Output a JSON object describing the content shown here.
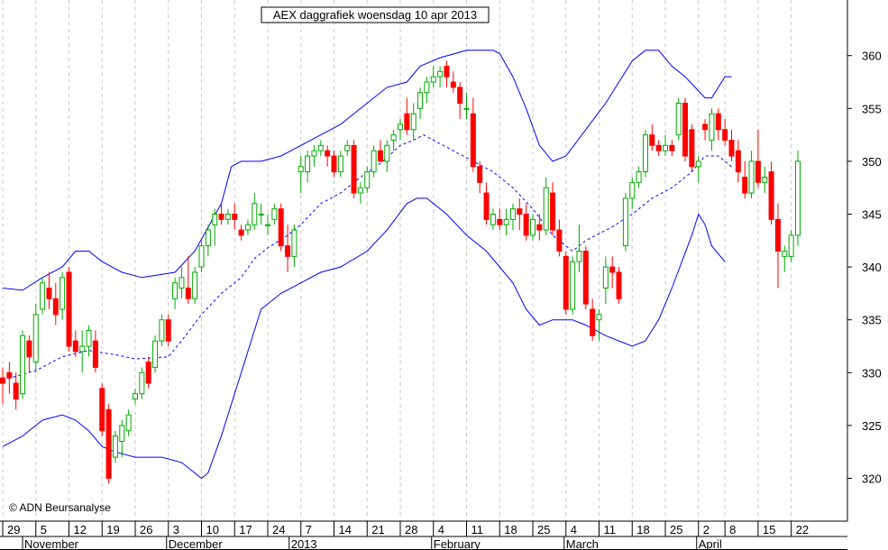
{
  "chart_data": {
    "type": "candlestick",
    "title": "AEX daggrafiek woensdag 10 apr 2013",
    "copyright": "© ADN Beursanalyse",
    "ylim": [
      315.5,
      365.5
    ],
    "y_ticks": [
      320,
      325,
      330,
      335,
      340,
      345,
      350,
      355,
      360
    ],
    "x_ticks": [
      {
        "label": "29",
        "day": 0
      },
      {
        "label": "5",
        "day": 5
      },
      {
        "label": "12",
        "day": 10
      },
      {
        "label": "19",
        "day": 15
      },
      {
        "label": "26",
        "day": 20
      },
      {
        "label": "3",
        "day": 25
      },
      {
        "label": "10",
        "day": 30
      },
      {
        "label": "17",
        "day": 35
      },
      {
        "label": "24",
        "day": 40
      },
      {
        "label": "7",
        "day": 45
      },
      {
        "label": "14",
        "day": 50
      },
      {
        "label": "21",
        "day": 55
      },
      {
        "label": "28",
        "day": 60
      },
      {
        "label": "4",
        "day": 65
      },
      {
        "label": "11",
        "day": 70
      },
      {
        "label": "18",
        "day": 75
      },
      {
        "label": "25",
        "day": 80
      },
      {
        "label": "4",
        "day": 85
      },
      {
        "label": "11",
        "day": 90
      },
      {
        "label": "18",
        "day": 95
      },
      {
        "label": "25",
        "day": 100
      },
      {
        "label": "2",
        "day": 105
      },
      {
        "label": "8",
        "day": 109
      },
      {
        "label": "15",
        "day": 114
      },
      {
        "label": "22",
        "day": 119
      }
    ],
    "months": [
      {
        "label": "November",
        "day": 3
      },
      {
        "label": "December",
        "day": 25
      },
      {
        "label": "2013",
        "day": 43.5
      },
      {
        "label": "February",
        "day": 65
      },
      {
        "label": "March",
        "day": 85
      },
      {
        "label": "April",
        "day": 105
      }
    ],
    "candles": [
      [
        329.5,
        330.5,
        327,
        329
      ],
      [
        330,
        331,
        328,
        329.5
      ],
      [
        329,
        330,
        326.5,
        327.5
      ],
      [
        328,
        334,
        327.5,
        333.5
      ],
      [
        333,
        333.5,
        330,
        331.5
      ],
      [
        331,
        336.5,
        330,
        335.5
      ],
      [
        336,
        339,
        335.5,
        338.5
      ],
      [
        338,
        339.5,
        336,
        337
      ],
      [
        337,
        338.5,
        334.5,
        335.5
      ],
      [
        336,
        339.5,
        335,
        339
      ],
      [
        339.5,
        340,
        332,
        332.5
      ],
      [
        333,
        334,
        331.5,
        332
      ],
      [
        332,
        334,
        330,
        332.5
      ],
      [
        332.5,
        334.5,
        331.5,
        334
      ],
      [
        333,
        334,
        330,
        330.5
      ],
      [
        328.5,
        329,
        324,
        324.5
      ],
      [
        326.5,
        327,
        319.5,
        320
      ],
      [
        322,
        324.5,
        321.5,
        324
      ],
      [
        323.5,
        325.5,
        322,
        325
      ],
      [
        324.5,
        326.5,
        324,
        326
      ],
      [
        327.5,
        328.5,
        327,
        328
      ],
      [
        328,
        330.5,
        327.5,
        330
      ],
      [
        331,
        331.5,
        328.5,
        329
      ],
      [
        330.5,
        333.5,
        330,
        333
      ],
      [
        333,
        335.5,
        332.5,
        335
      ],
      [
        335,
        335.5,
        332.5,
        333
      ],
      [
        337,
        339,
        336,
        338.5
      ],
      [
        338,
        340,
        337,
        339
      ],
      [
        338,
        341,
        336.5,
        337
      ],
      [
        337,
        340,
        336.5,
        339.5
      ],
      [
        340,
        342.5,
        339.5,
        342
      ],
      [
        342,
        344,
        341,
        343.5
      ],
      [
        344,
        345.5,
        342,
        345
      ],
      [
        345,
        346,
        344,
        344.5
      ],
      [
        344.5,
        345.5,
        344,
        345
      ],
      [
        345,
        346,
        343.5,
        344.5
      ],
      [
        343.5,
        344,
        342.5,
        343
      ],
      [
        343.5,
        344.5,
        343,
        344
      ],
      [
        344,
        347,
        343.5,
        346
      ],
      [
        345,
        346,
        344,
        345
      ],
      [
        344,
        345,
        343,
        344
      ],
      [
        344.5,
        346,
        344,
        345.5
      ],
      [
        345.5,
        346,
        341.5,
        342
      ],
      [
        342,
        344,
        339.5,
        341
      ],
      [
        341,
        344,
        340,
        343.5
      ],
      [
        349,
        350.5,
        347,
        349.5
      ],
      [
        349,
        351,
        348,
        350.5
      ],
      [
        350.5,
        351.5,
        349.5,
        351
      ],
      [
        351,
        352,
        350.5,
        351.5
      ],
      [
        351,
        351.5,
        349.5,
        350.5
      ],
      [
        350.5,
        351,
        348.5,
        349
      ],
      [
        349,
        351,
        348.5,
        350.5
      ],
      [
        351,
        352,
        350.5,
        351.5
      ],
      [
        351.5,
        352,
        346.5,
        347
      ],
      [
        347,
        348,
        346,
        347.5
      ],
      [
        347.5,
        349.5,
        347,
        349
      ],
      [
        349,
        351.5,
        348.5,
        351
      ],
      [
        351,
        352,
        350,
        350
      ],
      [
        350,
        352,
        349,
        351.5
      ],
      [
        352,
        353,
        351,
        352.5
      ],
      [
        353,
        354,
        352,
        353.5
      ],
      [
        354.5,
        356,
        352.5,
        353
      ],
      [
        353,
        355.5,
        352,
        354.5
      ],
      [
        355,
        357,
        354,
        356.5
      ],
      [
        356.5,
        358,
        355.5,
        357.5
      ],
      [
        357.5,
        359,
        357,
        358
      ],
      [
        358,
        359,
        357,
        358.5
      ],
      [
        359,
        359.5,
        357,
        358
      ],
      [
        357.5,
        358.5,
        356.5,
        357
      ],
      [
        357,
        357.5,
        354,
        355.5
      ],
      [
        355,
        356.5,
        354,
        355
      ],
      [
        354.5,
        356,
        349,
        349.5
      ],
      [
        349.5,
        350,
        347,
        348
      ],
      [
        347,
        348,
        344,
        344.5
      ],
      [
        344,
        345.5,
        343.5,
        345
      ],
      [
        344.5,
        345.5,
        343.5,
        344
      ],
      [
        344,
        345.5,
        343,
        344.5
      ],
      [
        344.5,
        346,
        343.5,
        345.5
      ],
      [
        345.5,
        346.5,
        343.5,
        345
      ],
      [
        345,
        346,
        342.5,
        343
      ],
      [
        343,
        345,
        342.5,
        344.5
      ],
      [
        344,
        345,
        342.5,
        343.5
      ],
      [
        343.5,
        348.5,
        343,
        347.5
      ],
      [
        347,
        348,
        343,
        343.5
      ],
      [
        343.5,
        344.5,
        341,
        341.5
      ],
      [
        341,
        341.5,
        335.5,
        336
      ],
      [
        336,
        341,
        335.5,
        340.5
      ],
      [
        340.5,
        344,
        339.5,
        341.5
      ],
      [
        341.5,
        342,
        336,
        336.5
      ],
      [
        336,
        337,
        333,
        333.5
      ],
      [
        335,
        336,
        333,
        335.5
      ],
      [
        338,
        341,
        336.5,
        340
      ],
      [
        340,
        341,
        338,
        339.5
      ],
      [
        339.5,
        340,
        336.5,
        337
      ],
      [
        342,
        347,
        341.5,
        346.5
      ],
      [
        346.5,
        348.5,
        345.5,
        348
      ],
      [
        348,
        349.5,
        347.5,
        349
      ],
      [
        349,
        353,
        348.5,
        352.5
      ],
      [
        352.5,
        353.5,
        351,
        351.5
      ],
      [
        351.5,
        352,
        350.5,
        351
      ],
      [
        351,
        352.5,
        350.5,
        351.5
      ],
      [
        351.5,
        352,
        350.5,
        351
      ],
      [
        352.5,
        356,
        352,
        355.5
      ],
      [
        355.5,
        356,
        350,
        350.5
      ],
      [
        353,
        353.5,
        349,
        349.5
      ],
      [
        349.5,
        350.5,
        348,
        350
      ],
      [
        353.5,
        354,
        352,
        353
      ],
      [
        352,
        355,
        351,
        354.5
      ],
      [
        354.5,
        355,
        352,
        353
      ],
      [
        353,
        354,
        351.5,
        352
      ],
      [
        352,
        353,
        350,
        350.5
      ],
      [
        351,
        352,
        348,
        349
      ],
      [
        348.5,
        350,
        346.5,
        347
      ],
      [
        347,
        351,
        346.5,
        350
      ],
      [
        350,
        353,
        347.5,
        348
      ],
      [
        348,
        349.5,
        347,
        348.5
      ],
      [
        349,
        350,
        344,
        344.5
      ],
      [
        344.5,
        346,
        338,
        341.5
      ],
      [
        341,
        342,
        339.5,
        341.5
      ],
      [
        341,
        343.5,
        340.5,
        343
      ],
      [
        343,
        351,
        342,
        350
      ]
    ],
    "bollinger_middle": [
      [
        0,
        329.3
      ],
      [
        5,
        330.2
      ],
      [
        9,
        331.5
      ],
      [
        13,
        332.1
      ],
      [
        17,
        331.7
      ],
      [
        20,
        331.3
      ],
      [
        25,
        331.5
      ],
      [
        27,
        333
      ],
      [
        30,
        335.5
      ],
      [
        33,
        337.5
      ],
      [
        36,
        339
      ],
      [
        38,
        340.8
      ],
      [
        40,
        341.8
      ],
      [
        43,
        343
      ],
      [
        45,
        344
      ],
      [
        48,
        346
      ],
      [
        51,
        347
      ],
      [
        54,
        348.5
      ],
      [
        57,
        349.8
      ],
      [
        60,
        351.5
      ],
      [
        62,
        352
      ],
      [
        63.5,
        352.5
      ],
      [
        65,
        352
      ],
      [
        68,
        351
      ],
      [
        71,
        350
      ],
      [
        74,
        349
      ],
      [
        77,
        347.5
      ],
      [
        80,
        345.5
      ],
      [
        83,
        343
      ],
      [
        86,
        341.5
      ],
      [
        88,
        342.5
      ],
      [
        92,
        343.8
      ],
      [
        95,
        345
      ],
      [
        98,
        346.5
      ],
      [
        101,
        347.5
      ],
      [
        104,
        349
      ],
      [
        106,
        350.5
      ],
      [
        108,
        350.5
      ],
      [
        110,
        349.5
      ]
    ],
    "bollinger_upper": [
      [
        0,
        338
      ],
      [
        3,
        337.8
      ],
      [
        6,
        339
      ],
      [
        9,
        340
      ],
      [
        11,
        341.5
      ],
      [
        13,
        341.5
      ],
      [
        15,
        340.5
      ],
      [
        18,
        339.5
      ],
      [
        21,
        339
      ],
      [
        26,
        339.5
      ],
      [
        29,
        341.5
      ],
      [
        33,
        346
      ],
      [
        34.5,
        349.5
      ],
      [
        36,
        350
      ],
      [
        39,
        350
      ],
      [
        42,
        350.5
      ],
      [
        45,
        351.5
      ],
      [
        48,
        352.5
      ],
      [
        51,
        353.5
      ],
      [
        55,
        355.5
      ],
      [
        58,
        357
      ],
      [
        61,
        357.5
      ],
      [
        63,
        359
      ],
      [
        66,
        359.8
      ],
      [
        70,
        360.5
      ],
      [
        74,
        360.5
      ],
      [
        75,
        360.2
      ],
      [
        77,
        358
      ],
      [
        79,
        355
      ],
      [
        81,
        351.5
      ],
      [
        83,
        350
      ],
      [
        85,
        350.5
      ],
      [
        88,
        353
      ],
      [
        91,
        355.5
      ],
      [
        93,
        357.5
      ],
      [
        95,
        359.5
      ],
      [
        97,
        360.5
      ],
      [
        99,
        360.5
      ],
      [
        101,
        359
      ],
      [
        103,
        358
      ],
      [
        106,
        356
      ],
      [
        107,
        356
      ],
      [
        109,
        358
      ],
      [
        110,
        358
      ]
    ],
    "bollinger_lower": [
      [
        0,
        323
      ],
      [
        3,
        324
      ],
      [
        6,
        325.5
      ],
      [
        9,
        326
      ],
      [
        11,
        325.5
      ],
      [
        13,
        324.5
      ],
      [
        15,
        323
      ],
      [
        17,
        322.5
      ],
      [
        20,
        322
      ],
      [
        24,
        322
      ],
      [
        27,
        321.5
      ],
      [
        30,
        320
      ],
      [
        31,
        320.5
      ],
      [
        33,
        324
      ],
      [
        36,
        330
      ],
      [
        39,
        336
      ],
      [
        42,
        337.5
      ],
      [
        45,
        338.5
      ],
      [
        48,
        339.5
      ],
      [
        51,
        340
      ],
      [
        55,
        341.5
      ],
      [
        58,
        343.5
      ],
      [
        61,
        346
      ],
      [
        62.5,
        346.5
      ],
      [
        64,
        346.5
      ],
      [
        67,
        345
      ],
      [
        70,
        343
      ],
      [
        73,
        341.5
      ],
      [
        77,
        338.5
      ],
      [
        79,
        336
      ],
      [
        81,
        334.5
      ],
      [
        83,
        335
      ],
      [
        86,
        335
      ],
      [
        88,
        334.5
      ],
      [
        91,
        333.5
      ],
      [
        93,
        333
      ],
      [
        95,
        332.5
      ],
      [
        97,
        333
      ],
      [
        99,
        335
      ],
      [
        101,
        338
      ],
      [
        104,
        343
      ],
      [
        105,
        345
      ],
      [
        106,
        344
      ],
      [
        107,
        342
      ],
      [
        109,
        340.5
      ]
    ],
    "colors": {
      "up": "#00aa00",
      "down": "#ff0000",
      "bands": "#0000ff",
      "grid": "#c8c8c8"
    }
  }
}
